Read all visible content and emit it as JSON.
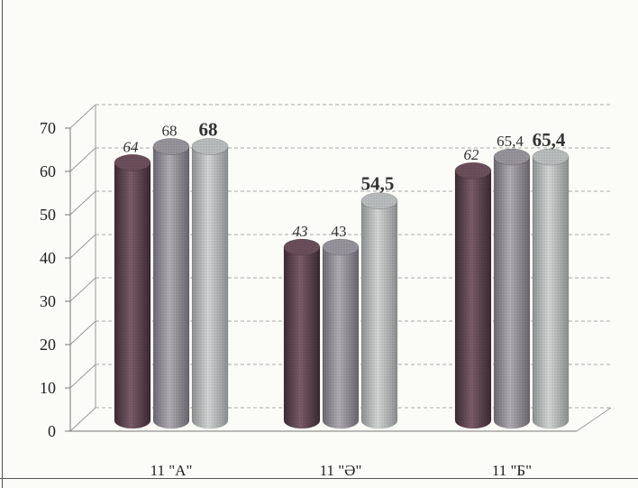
{
  "chart_data": {
    "type": "bar",
    "style": "3d-cylinder",
    "categories": [
      "11 \"А\"",
      "11 \"Ә\"",
      "11 \"Б\""
    ],
    "series": [
      {
        "values": [
          64,
          43,
          62
        ],
        "color": "#6a4f5a",
        "labels": [
          "64",
          "43",
          "62"
        ]
      },
      {
        "values": [
          68,
          43,
          65.4
        ],
        "color": "#97939a",
        "labels": [
          "68",
          "43",
          "65,4"
        ]
      },
      {
        "values": [
          68,
          54.5,
          65.4
        ],
        "color": "#b9bcbc",
        "labels": [
          "68",
          "54,5",
          "65,4"
        ]
      }
    ],
    "ylim": [
      0,
      70
    ],
    "yticks": [
      "0",
      "10",
      "20",
      "30",
      "40",
      "50",
      "60",
      "70"
    ],
    "grid": true,
    "legend": "none"
  }
}
